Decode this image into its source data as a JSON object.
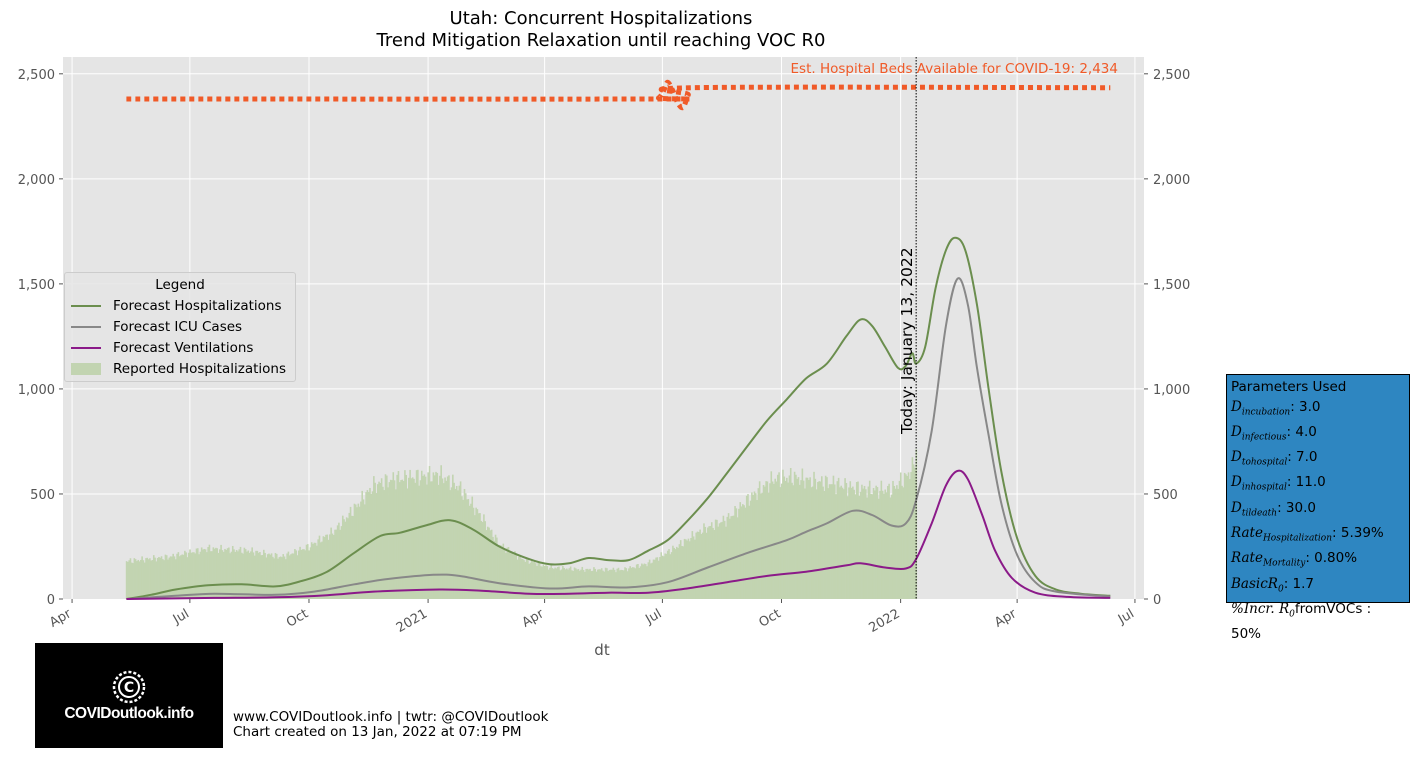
{
  "chart_data": {
    "type": "line",
    "title": "Utah: Concurrent Hospitalizations",
    "subtitle": "Trend Mitigation Relaxation until reaching VOC R0",
    "xlabel": "dt",
    "ylabel": "",
    "ylim": [
      0,
      2580
    ],
    "yticks": [
      "0",
      "500",
      "1,000",
      "1,500",
      "2,000",
      "2,500"
    ],
    "ytick_values": [
      0,
      500,
      1000,
      1500,
      2000,
      2500
    ],
    "xticks": [
      "Apr",
      "Jul",
      "Oct",
      "2021",
      "Apr",
      "Jul",
      "Oct",
      "2022",
      "Apr",
      "Jul"
    ],
    "xtick_dates": [
      "2020-04-01",
      "2020-07-01",
      "2020-10-01",
      "2021-01-01",
      "2021-04-01",
      "2021-07-01",
      "2021-10-01",
      "2022-01-01",
      "2022-04-01",
      "2022-07-01"
    ],
    "xlim": [
      "2020-03-25",
      "2022-07-08"
    ],
    "grid": true,
    "legend_position": "center-left",
    "today_label": "Today: January 13, 2022",
    "today_date": "2022-01-13",
    "beds_label": "Est. Hospital Beds Available for COVID-19: 2,434",
    "beds_series": [
      {
        "date": "2020-05-13",
        "value": 2380
      },
      {
        "date": "2021-06-20",
        "value": 2380
      },
      {
        "date": "2021-06-28",
        "value": 2385
      },
      {
        "date": "2021-07-02",
        "value": 2420
      },
      {
        "date": "2021-07-05",
        "value": 2460
      },
      {
        "date": "2021-07-09",
        "value": 2420
      },
      {
        "date": "2021-07-13",
        "value": 2360
      },
      {
        "date": "2021-07-17",
        "value": 2340
      },
      {
        "date": "2021-07-21",
        "value": 2400
      },
      {
        "date": "2021-07-25",
        "value": 2434
      },
      {
        "date": "2022-06-12",
        "value": 2434
      }
    ],
    "series": [
      {
        "name": "Forecast Hospitalizations",
        "color": "#6b8e4e",
        "points": [
          [
            "2020-05-13",
            0
          ],
          [
            "2020-06-01",
            20
          ],
          [
            "2020-06-20",
            45
          ],
          [
            "2020-07-15",
            65
          ],
          [
            "2020-08-10",
            70
          ],
          [
            "2020-09-05",
            60
          ],
          [
            "2020-09-25",
            85
          ],
          [
            "2020-10-15",
            130
          ],
          [
            "2020-11-05",
            220
          ],
          [
            "2020-11-25",
            300
          ],
          [
            "2020-12-10",
            315
          ],
          [
            "2020-12-30",
            350
          ],
          [
            "2021-01-18",
            375
          ],
          [
            "2021-02-05",
            330
          ],
          [
            "2021-02-25",
            250
          ],
          [
            "2021-03-20",
            190
          ],
          [
            "2021-04-05",
            165
          ],
          [
            "2021-04-20",
            170
          ],
          [
            "2021-05-05",
            195
          ],
          [
            "2021-05-20",
            185
          ],
          [
            "2021-06-05",
            185
          ],
          [
            "2021-06-20",
            230
          ],
          [
            "2021-07-05",
            280
          ],
          [
            "2021-07-20",
            370
          ],
          [
            "2021-08-05",
            480
          ],
          [
            "2021-08-20",
            600
          ],
          [
            "2021-09-05",
            730
          ],
          [
            "2021-09-20",
            850
          ],
          [
            "2021-10-05",
            950
          ],
          [
            "2021-10-20",
            1050
          ],
          [
            "2021-11-05",
            1120
          ],
          [
            "2021-11-20",
            1250
          ],
          [
            "2021-12-01",
            1330
          ],
          [
            "2021-12-10",
            1300
          ],
          [
            "2021-12-20",
            1200
          ],
          [
            "2021-12-30",
            1100
          ],
          [
            "2022-01-05",
            1110
          ],
          [
            "2022-01-10",
            1170
          ],
          [
            "2022-01-13",
            1120
          ],
          [
            "2022-01-20",
            1200
          ],
          [
            "2022-01-28",
            1480
          ],
          [
            "2022-02-05",
            1660
          ],
          [
            "2022-02-12",
            1720
          ],
          [
            "2022-02-20",
            1660
          ],
          [
            "2022-03-01",
            1400
          ],
          [
            "2022-03-10",
            1000
          ],
          [
            "2022-03-20",
            600
          ],
          [
            "2022-04-01",
            290
          ],
          [
            "2022-04-15",
            110
          ],
          [
            "2022-05-01",
            45
          ],
          [
            "2022-05-20",
            25
          ],
          [
            "2022-06-12",
            15
          ]
        ]
      },
      {
        "name": "Forecast ICU Cases",
        "color": "#888888",
        "points": [
          [
            "2020-05-13",
            0
          ],
          [
            "2020-06-20",
            15
          ],
          [
            "2020-07-20",
            25
          ],
          [
            "2020-09-05",
            20
          ],
          [
            "2020-10-05",
            35
          ],
          [
            "2020-11-05",
            70
          ],
          [
            "2020-12-01",
            95
          ],
          [
            "2021-01-05",
            115
          ],
          [
            "2021-01-25",
            110
          ],
          [
            "2021-02-25",
            75
          ],
          [
            "2021-04-05",
            50
          ],
          [
            "2021-05-05",
            60
          ],
          [
            "2021-06-05",
            55
          ],
          [
            "2021-07-05",
            80
          ],
          [
            "2021-08-05",
            150
          ],
          [
            "2021-09-05",
            220
          ],
          [
            "2021-10-05",
            280
          ],
          [
            "2021-10-20",
            320
          ],
          [
            "2021-11-05",
            360
          ],
          [
            "2021-11-25",
            420
          ],
          [
            "2021-12-10",
            400
          ],
          [
            "2021-12-25",
            350
          ],
          [
            "2022-01-05",
            360
          ],
          [
            "2022-01-13",
            470
          ],
          [
            "2022-01-25",
            800
          ],
          [
            "2022-02-05",
            1300
          ],
          [
            "2022-02-14",
            1525
          ],
          [
            "2022-02-22",
            1400
          ],
          [
            "2022-03-01",
            1100
          ],
          [
            "2022-03-10",
            780
          ],
          [
            "2022-03-20",
            450
          ],
          [
            "2022-04-01",
            210
          ],
          [
            "2022-04-15",
            80
          ],
          [
            "2022-05-01",
            35
          ],
          [
            "2022-06-12",
            12
          ]
        ]
      },
      {
        "name": "Forecast Ventilations",
        "color": "#8b1a89",
        "points": [
          [
            "2020-05-13",
            0
          ],
          [
            "2020-07-20",
            5
          ],
          [
            "2020-09-05",
            8
          ],
          [
            "2020-10-15",
            18
          ],
          [
            "2020-11-20",
            35
          ],
          [
            "2021-01-10",
            45
          ],
          [
            "2021-02-10",
            40
          ],
          [
            "2021-03-20",
            25
          ],
          [
            "2021-04-20",
            25
          ],
          [
            "2021-05-20",
            30
          ],
          [
            "2021-06-20",
            30
          ],
          [
            "2021-07-20",
            50
          ],
          [
            "2021-08-20",
            80
          ],
          [
            "2021-09-20",
            110
          ],
          [
            "2021-10-20",
            130
          ],
          [
            "2021-11-20",
            160
          ],
          [
            "2021-12-01",
            170
          ],
          [
            "2021-12-20",
            150
          ],
          [
            "2022-01-05",
            145
          ],
          [
            "2022-01-13",
            190
          ],
          [
            "2022-01-25",
            360
          ],
          [
            "2022-02-05",
            540
          ],
          [
            "2022-02-14",
            610
          ],
          [
            "2022-02-22",
            570
          ],
          [
            "2022-03-05",
            400
          ],
          [
            "2022-03-15",
            230
          ],
          [
            "2022-03-28",
            100
          ],
          [
            "2022-04-15",
            30
          ],
          [
            "2022-05-10",
            10
          ],
          [
            "2022-06-12",
            5
          ]
        ]
      }
    ],
    "reported_series": {
      "name": "Reported Hospitalizations",
      "color": "#c2d4b1",
      "points": [
        [
          "2020-05-13",
          180
        ],
        [
          "2020-06-15",
          200
        ],
        [
          "2020-07-15",
          240
        ],
        [
          "2020-08-15",
          230
        ],
        [
          "2020-09-10",
          200
        ],
        [
          "2020-10-01",
          250
        ],
        [
          "2020-10-20",
          320
        ],
        [
          "2020-11-05",
          430
        ],
        [
          "2020-11-20",
          540
        ],
        [
          "2020-12-05",
          570
        ],
        [
          "2020-12-20",
          580
        ],
        [
          "2021-01-10",
          590
        ],
        [
          "2021-01-25",
          530
        ],
        [
          "2021-02-10",
          400
        ],
        [
          "2021-02-25",
          260
        ],
        [
          "2021-03-15",
          190
        ],
        [
          "2021-04-05",
          150
        ],
        [
          "2021-05-01",
          140
        ],
        [
          "2021-06-01",
          140
        ],
        [
          "2021-06-20",
          170
        ],
        [
          "2021-07-10",
          240
        ],
        [
          "2021-08-01",
          330
        ],
        [
          "2021-08-20",
          380
        ],
        [
          "2021-09-10",
          500
        ],
        [
          "2021-09-25",
          570
        ],
        [
          "2021-10-10",
          580
        ],
        [
          "2021-10-25",
          560
        ],
        [
          "2021-11-10",
          550
        ],
        [
          "2021-11-25",
          530
        ],
        [
          "2021-12-10",
          520
        ],
        [
          "2021-12-25",
          520
        ],
        [
          "2022-01-05",
          580
        ],
        [
          "2022-01-10",
          620
        ],
        [
          "2022-01-13",
          700
        ]
      ]
    }
  },
  "legend": {
    "title": "Legend",
    "items": [
      {
        "label": "Forecast Hospitalizations"
      },
      {
        "label": "Forecast ICU Cases"
      },
      {
        "label": "Forecast Ventilations"
      },
      {
        "label": "Reported Hospitalizations"
      }
    ]
  },
  "params": {
    "title": "Parameters Used",
    "rows": [
      {
        "sym": "D",
        "sub": "incubation",
        "val": ": 3.0"
      },
      {
        "sym": "D",
        "sub": "infectious",
        "val": ": 4.0"
      },
      {
        "sym": "D",
        "sub": "tohospital",
        "val": ": 7.0"
      },
      {
        "sym": "D",
        "sub": "inhospital",
        "val": ": 11.0"
      },
      {
        "sym": "D",
        "sub": "tildeath",
        "val": ": 30.0"
      },
      {
        "sym": "Rate",
        "sub": "Hospitalization",
        "val": ": 5.39%"
      },
      {
        "sym": "Rate",
        "sub": "Mortality",
        "val": ": 0.80%"
      },
      {
        "sym": "BasicR",
        "sub": "0",
        "val": ": 1.7"
      },
      {
        "sym": "%Incr. R",
        "sub": "0",
        "val": "fromVOCs : 50%"
      }
    ]
  },
  "logo": {
    "text": "COVIDoutlook.info"
  },
  "footer": {
    "line1": "www.COVIDoutlook.info | twtr: @COVIDoutlook",
    "line2": "Chart created on 13 Jan, 2022 at 07:19 PM"
  }
}
